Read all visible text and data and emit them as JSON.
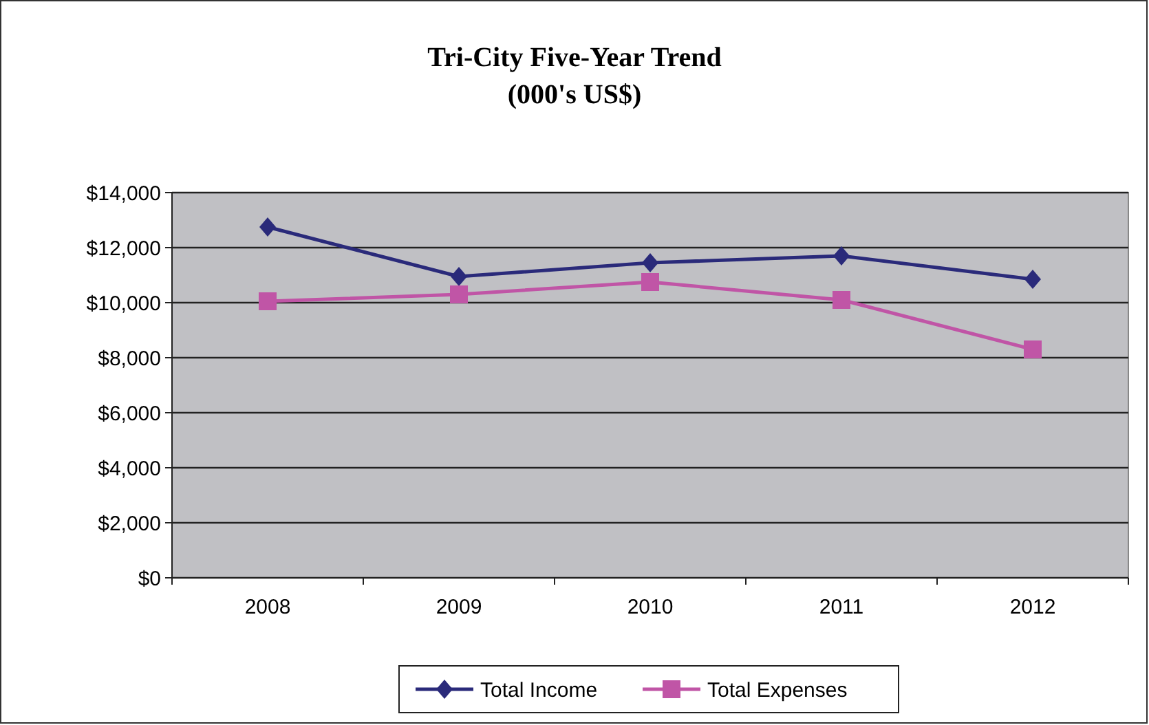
{
  "chart_data": {
    "type": "line",
    "title": "Tri-City  Five-Year Trend",
    "subtitle": "(000's US$)",
    "categories": [
      "2008",
      "2009",
      "2010",
      "2011",
      "2012"
    ],
    "series": [
      {
        "name": "Total Income",
        "color": "#2a2a7a",
        "marker": "diamond",
        "values": [
          12750,
          10950,
          11450,
          11700,
          10850
        ]
      },
      {
        "name": "Total Expenses",
        "color": "#c055a6",
        "marker": "square",
        "values": [
          10050,
          10300,
          10750,
          10100,
          8300
        ]
      }
    ],
    "ylim": [
      0,
      14000
    ],
    "yticks": [
      {
        "value": 0,
        "label": "$0"
      },
      {
        "value": 2000,
        "label": "$2,000"
      },
      {
        "value": 4000,
        "label": "$4,000"
      },
      {
        "value": 6000,
        "label": "$6,000"
      },
      {
        "value": 8000,
        "label": "$8,000"
      },
      {
        "value": 10000,
        "label": "$10,000"
      },
      {
        "value": 12000,
        "label": "$12,000"
      },
      {
        "value": 14000,
        "label": "$14,000"
      }
    ],
    "grid": "y",
    "legend": "bottom",
    "line_style": "solid"
  }
}
